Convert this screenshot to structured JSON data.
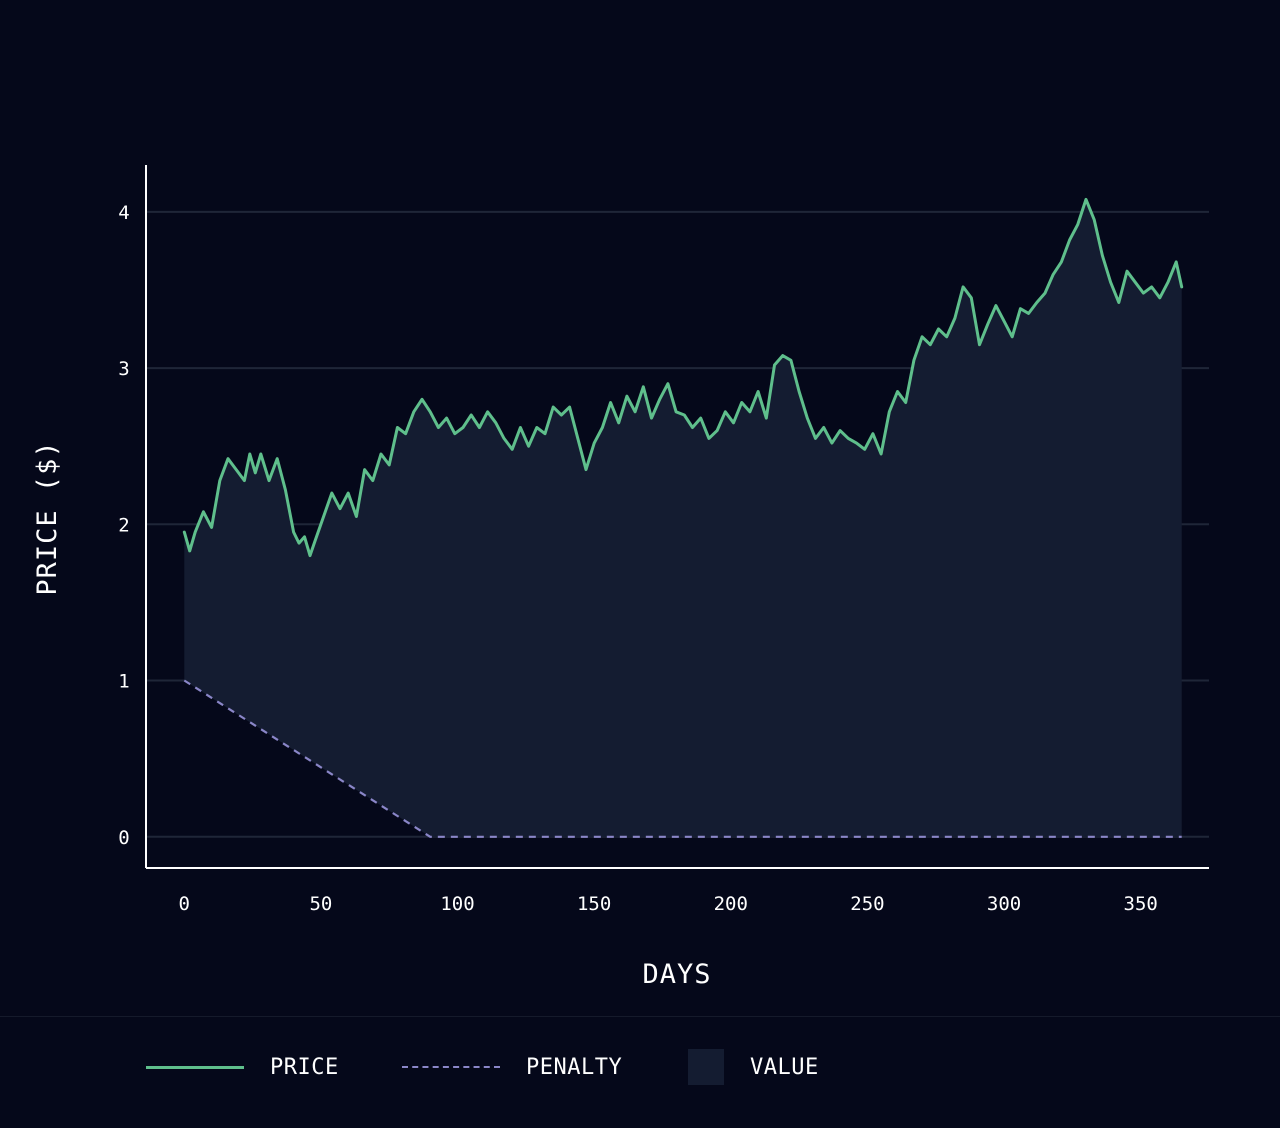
{
  "colors": {
    "background": "#05081a",
    "price": "#5fbf8c",
    "penalty": "#8a86c8",
    "value_fill": "#141c31",
    "grid": "#1f2638",
    "axis": "#ffffff"
  },
  "legend": [
    {
      "key": "price",
      "label": "PRICE",
      "swatch": "solid-line"
    },
    {
      "key": "penalty",
      "label": "PENALTY",
      "swatch": "dashed-line"
    },
    {
      "key": "value",
      "label": "VALUE",
      "swatch": "filled-box"
    }
  ],
  "chart_data": {
    "type": "line",
    "xlabel": "DAYS",
    "ylabel": "PRICE ($)",
    "xlim": [
      -14,
      375
    ],
    "ylim": [
      -0.2,
      4.3
    ],
    "xticks": [
      0,
      50,
      100,
      150,
      200,
      250,
      300,
      350
    ],
    "yticks": [
      0,
      1,
      2,
      3,
      4
    ],
    "grid": "horizontal",
    "legend_position": "bottom",
    "series": [
      {
        "key": "price",
        "style": "solid",
        "x": [
          0,
          2,
          4,
          7,
          10,
          13,
          16,
          19,
          22,
          24,
          26,
          28,
          31,
          34,
          37,
          40,
          42,
          44,
          46,
          48,
          51,
          54,
          57,
          60,
          63,
          66,
          69,
          72,
          75,
          78,
          81,
          84,
          87,
          90,
          93,
          96,
          99,
          102,
          105,
          108,
          111,
          114,
          117,
          120,
          123,
          126,
          129,
          132,
          135,
          138,
          141,
          144,
          147,
          150,
          153,
          156,
          159,
          162,
          165,
          168,
          171,
          174,
          177,
          180,
          183,
          186,
          189,
          192,
          195,
          198,
          201,
          204,
          207,
          210,
          213,
          216,
          219,
          222,
          225,
          228,
          231,
          234,
          237,
          240,
          243,
          246,
          249,
          252,
          255,
          258,
          261,
          264,
          267,
          270,
          273,
          276,
          279,
          282,
          285,
          288,
          291,
          294,
          297,
          300,
          303,
          306,
          309,
          312,
          315,
          318,
          321,
          324,
          327,
          330,
          333,
          336,
          339,
          342,
          345,
          348,
          351,
          354,
          357,
          360,
          363,
          365
        ],
        "y": [
          1.95,
          1.83,
          1.95,
          2.08,
          1.98,
          2.28,
          2.42,
          2.35,
          2.28,
          2.45,
          2.33,
          2.45,
          2.28,
          2.42,
          2.22,
          1.95,
          1.88,
          1.92,
          1.8,
          1.9,
          2.05,
          2.2,
          2.1,
          2.2,
          2.05,
          2.35,
          2.28,
          2.45,
          2.38,
          2.62,
          2.58,
          2.72,
          2.8,
          2.72,
          2.62,
          2.68,
          2.58,
          2.62,
          2.7,
          2.62,
          2.72,
          2.65,
          2.55,
          2.48,
          2.62,
          2.5,
          2.62,
          2.58,
          2.75,
          2.7,
          2.75,
          2.55,
          2.35,
          2.52,
          2.62,
          2.78,
          2.65,
          2.82,
          2.72,
          2.88,
          2.68,
          2.8,
          2.9,
          2.72,
          2.7,
          2.62,
          2.68,
          2.55,
          2.6,
          2.72,
          2.65,
          2.78,
          2.72,
          2.85,
          2.68,
          3.02,
          3.08,
          3.05,
          2.85,
          2.68,
          2.55,
          2.62,
          2.52,
          2.6,
          2.55,
          2.52,
          2.48,
          2.58,
          2.45,
          2.72,
          2.85,
          2.78,
          3.05,
          3.2,
          3.15,
          3.25,
          3.2,
          3.32,
          3.52,
          3.45,
          3.15,
          3.28,
          3.4,
          3.3,
          3.2,
          3.38,
          3.35,
          3.42,
          3.48,
          3.6,
          3.68,
          3.82,
          3.92,
          4.08,
          3.95,
          3.72,
          3.55,
          3.42,
          3.62,
          3.55,
          3.48,
          3.52,
          3.45,
          3.55,
          3.68,
          3.52
        ]
      },
      {
        "key": "penalty",
        "style": "dashed",
        "x": [
          0,
          90,
          365
        ],
        "y": [
          1.0,
          0.0,
          0.0
        ]
      }
    ],
    "area": {
      "key": "value",
      "between": [
        "penalty",
        "price"
      ]
    }
  }
}
